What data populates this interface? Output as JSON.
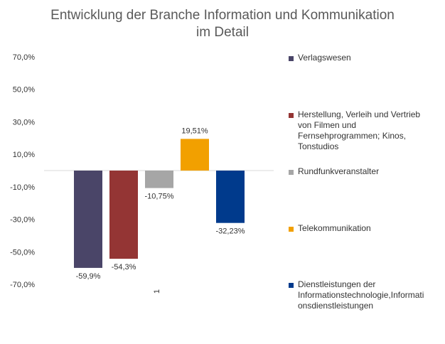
{
  "chart_data": {
    "type": "bar",
    "title": "Entwicklung der Branche Information und Kommunikation im Detail",
    "title_lines": [
      "Entwicklung der Branche Information und Kommunikation",
      "im Detail"
    ],
    "categories": [
      "1"
    ],
    "series": [
      {
        "name": "Verlagswesen",
        "value": -59.9,
        "label": "-59,9%",
        "color": "#4a4568"
      },
      {
        "name": "Herstellung, Verleih und Vertrieb von Filmen und Fernsehprogrammen; Kinos, Tonstudios",
        "value": -54.3,
        "label": "-54,3%",
        "color": "#943534"
      },
      {
        "name": "Rundfunkveranstalter",
        "value": -10.75,
        "label": "-10,75%",
        "color": "#a6a6a6"
      },
      {
        "name": "Telekommunikation",
        "value": 19.51,
        "label": "19,51%",
        "color": "#f2a000"
      },
      {
        "name": "Dienstleistungen der Informationstechnologie,Informationsdienstleistungen",
        "value": -32.23,
        "label": "-32,23%",
        "color": "#003a8c"
      }
    ],
    "legend_lines": [
      [
        "Verlagswesen"
      ],
      [
        "Herstellung, Verleih und Vertrieb",
        "von Filmen und",
        "Fernsehprogrammen; Kinos,",
        "Tonstudios"
      ],
      [
        "Rundfunkveranstalter"
      ],
      [
        "Telekommunikation"
      ],
      [
        "Dienstleistungen der",
        "Informationstechnologie,Informati",
        "onsdienstleistungen"
      ]
    ],
    "yticks": [
      "70,0%",
      "50,0%",
      "30,0%",
      "10,0%",
      "-10,0%",
      "-30,0%",
      "-50,0%",
      "-70,0%"
    ],
    "ytick_values": [
      70,
      50,
      30,
      10,
      -10,
      -30,
      -50,
      -70
    ],
    "ylim": [
      -70,
      70
    ],
    "xlabel": "",
    "ylabel": "",
    "grid": false,
    "legend_position": "right"
  }
}
